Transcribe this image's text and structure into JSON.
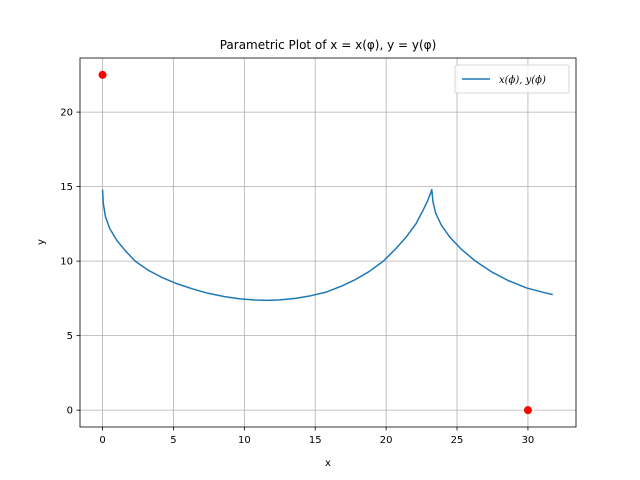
{
  "chart_data": {
    "type": "line",
    "title": "Parametric Plot of x = x(φ), y = y(φ)",
    "xlabel": "x",
    "ylabel": "y",
    "xlim": [
      -1.59,
      33.39
    ],
    "ylim": [
      -1.13,
      23.63
    ],
    "xticks": [
      0,
      5,
      10,
      15,
      20,
      25,
      30
    ],
    "yticks": [
      0,
      5,
      10,
      15,
      20
    ],
    "grid": true,
    "legend": {
      "placement": "top-right"
    },
    "series": [
      {
        "name": "x(ϕ), y(ϕ)",
        "color": "#1f77b4",
        "x": [
          0.0,
          0.05,
          0.2,
          0.5,
          1.0,
          1.6,
          2.3,
          3.2,
          4.2,
          5.2,
          6.3,
          7.4,
          8.6,
          9.7,
          10.8,
          11.6,
          12.5,
          13.6,
          14.7,
          15.8,
          16.8,
          17.8,
          18.8,
          19.8,
          20.6,
          21.4,
          22.1,
          22.6,
          22.95,
          23.15,
          23.22,
          23.3,
          23.5,
          23.9,
          24.5,
          25.3,
          26.3,
          27.4,
          28.6,
          29.9,
          31.1,
          31.75
        ],
        "y": [
          14.8,
          13.9,
          13.0,
          12.2,
          11.4,
          10.7,
          10.0,
          9.4,
          8.9,
          8.5,
          8.15,
          7.85,
          7.62,
          7.47,
          7.39,
          7.37,
          7.4,
          7.5,
          7.68,
          7.93,
          8.3,
          8.75,
          9.3,
          10.0,
          10.75,
          11.6,
          12.5,
          13.4,
          14.1,
          14.6,
          14.8,
          14.0,
          13.2,
          12.4,
          11.6,
          10.8,
          10.0,
          9.3,
          8.7,
          8.2,
          7.9,
          7.75
        ]
      }
    ],
    "points": {
      "color": "#ff0000",
      "x": [
        0,
        30
      ],
      "y": [
        22.5,
        0
      ]
    }
  }
}
